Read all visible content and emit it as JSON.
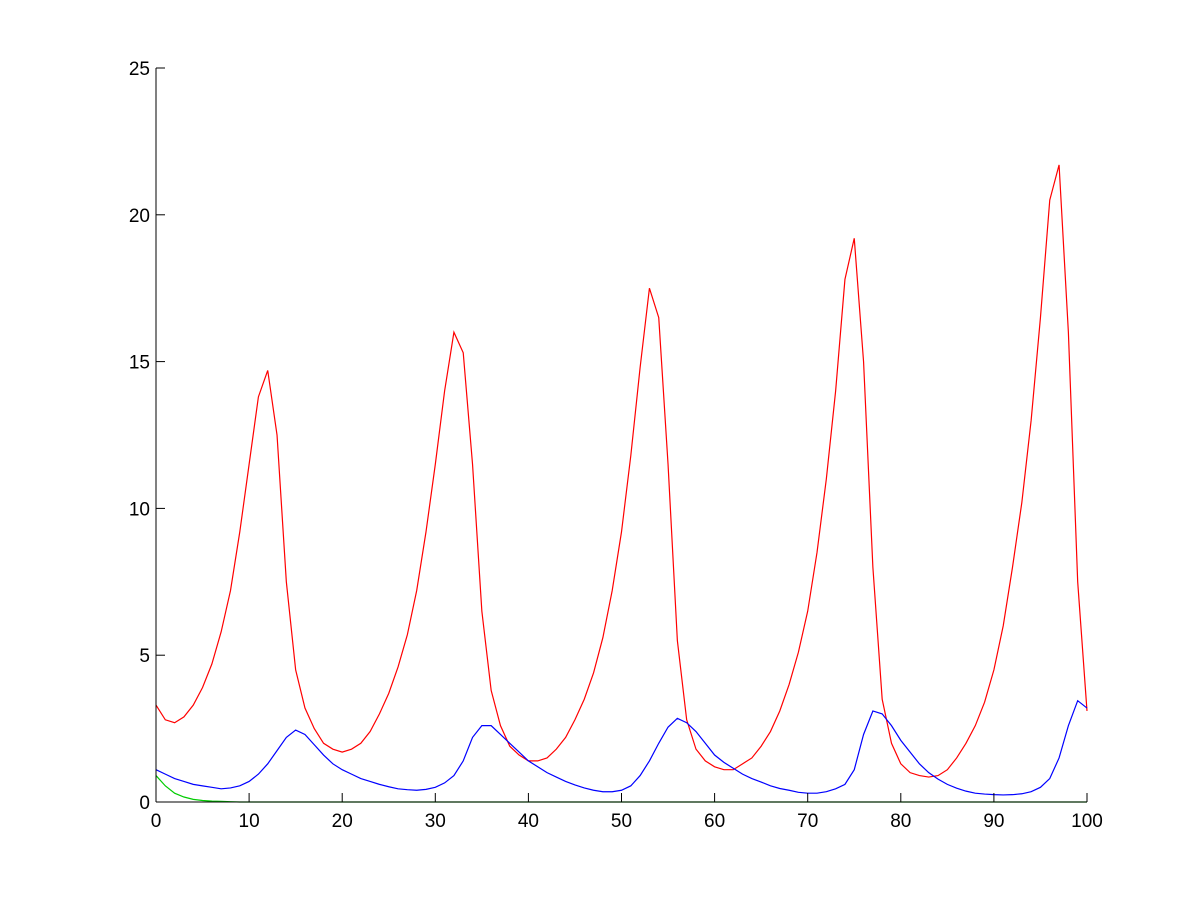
{
  "chart_data": {
    "type": "line",
    "x": [
      0,
      1,
      2,
      3,
      4,
      5,
      6,
      7,
      8,
      9,
      10,
      11,
      12,
      13,
      14,
      15,
      16,
      17,
      18,
      19,
      20,
      21,
      22,
      23,
      24,
      25,
      26,
      27,
      28,
      29,
      30,
      31,
      32,
      33,
      34,
      35,
      36,
      37,
      38,
      39,
      40,
      41,
      42,
      43,
      44,
      45,
      46,
      47,
      48,
      49,
      50,
      51,
      52,
      53,
      54,
      55,
      56,
      57,
      58,
      59,
      60,
      61,
      62,
      63,
      64,
      65,
      66,
      67,
      68,
      69,
      70,
      71,
      72,
      73,
      74,
      75,
      76,
      77,
      78,
      79,
      80,
      81,
      82,
      83,
      84,
      85,
      86,
      87,
      88,
      89,
      90,
      91,
      92,
      93,
      94,
      95,
      96,
      97,
      98,
      99,
      100
    ],
    "series": [
      {
        "color": "#ff0000",
        "values": [
          3.3,
          2.8,
          2.7,
          2.9,
          3.3,
          3.9,
          4.7,
          5.8,
          7.2,
          9.2,
          11.5,
          13.8,
          14.7,
          12.5,
          7.5,
          4.5,
          3.2,
          2.5,
          2.0,
          1.8,
          1.7,
          1.8,
          2.0,
          2.4,
          3.0,
          3.7,
          4.6,
          5.7,
          7.2,
          9.2,
          11.5,
          14,
          16,
          15.3,
          11.5,
          6.5,
          3.8,
          2.6,
          1.9,
          1.6,
          1.4,
          1.4,
          1.5,
          1.8,
          2.2,
          2.8,
          3.5,
          4.4,
          5.6,
          7.2,
          9.2,
          11.8,
          14.8,
          17.5,
          16.5,
          11.5,
          5.5,
          2.8,
          1.8,
          1.4,
          1.2,
          1.1,
          1.1,
          1.3,
          1.5,
          1.9,
          2.4,
          3.1,
          4.0,
          5.1,
          6.5,
          8.5,
          11,
          14,
          17.8,
          19.2,
          15,
          8,
          3.5,
          2.0,
          1.3,
          1.0,
          0.9,
          0.85,
          0.9,
          1.1,
          1.5,
          2.0,
          2.6,
          3.4,
          4.5,
          6,
          8,
          10.2,
          13,
          16.5,
          20.5,
          21.7,
          16,
          7.5,
          3.1
        ]
      },
      {
        "color": "#0000ff",
        "values": [
          1.1,
          0.95,
          0.8,
          0.7,
          0.6,
          0.55,
          0.5,
          0.45,
          0.48,
          0.55,
          0.7,
          0.95,
          1.3,
          1.75,
          2.2,
          2.45,
          2.3,
          1.95,
          1.6,
          1.3,
          1.1,
          0.95,
          0.8,
          0.7,
          0.6,
          0.52,
          0.45,
          0.42,
          0.4,
          0.43,
          0.5,
          0.65,
          0.9,
          1.4,
          2.2,
          2.6,
          2.6,
          2.3,
          2.0,
          1.7,
          1.4,
          1.2,
          1.0,
          0.85,
          0.7,
          0.58,
          0.48,
          0.4,
          0.35,
          0.35,
          0.4,
          0.55,
          0.9,
          1.4,
          2.0,
          2.55,
          2.85,
          2.7,
          2.4,
          2.0,
          1.6,
          1.35,
          1.15,
          0.95,
          0.8,
          0.68,
          0.55,
          0.46,
          0.4,
          0.33,
          0.3,
          0.3,
          0.35,
          0.45,
          0.6,
          1.1,
          2.3,
          3.1,
          3.0,
          2.6,
          2.1,
          1.7,
          1.3,
          1.0,
          0.78,
          0.6,
          0.47,
          0.37,
          0.3,
          0.27,
          0.25,
          0.24,
          0.25,
          0.28,
          0.35,
          0.5,
          0.8,
          1.5,
          2.6,
          3.45,
          3.2
        ]
      },
      {
        "color": "#00cc00",
        "values": [
          0.9,
          0.55,
          0.3,
          0.17,
          0.09,
          0.05,
          0.03,
          0.02,
          0.01,
          0,
          0,
          0,
          0,
          0,
          0,
          0,
          0,
          0,
          0,
          0,
          0,
          0,
          0,
          0,
          0,
          0,
          0,
          0,
          0,
          0,
          0,
          0,
          0,
          0,
          0,
          0,
          0,
          0,
          0,
          0,
          0,
          0,
          0,
          0,
          0,
          0,
          0,
          0,
          0,
          0,
          0,
          0,
          0,
          0,
          0,
          0,
          0,
          0,
          0,
          0,
          0,
          0,
          0,
          0,
          0,
          0,
          0,
          0,
          0,
          0,
          0,
          0,
          0,
          0,
          0,
          0,
          0,
          0,
          0,
          0,
          0,
          0,
          0,
          0,
          0,
          0,
          0,
          0,
          0,
          0,
          0,
          0,
          0,
          0,
          0,
          0,
          0,
          0,
          0,
          0,
          0
        ]
      }
    ],
    "xlim": [
      0,
      100
    ],
    "ylim": [
      0,
      25
    ],
    "xticks": [
      0,
      10,
      20,
      30,
      40,
      50,
      60,
      70,
      80,
      90,
      100
    ],
    "yticks": [
      0,
      5,
      10,
      15,
      20,
      25
    ]
  }
}
